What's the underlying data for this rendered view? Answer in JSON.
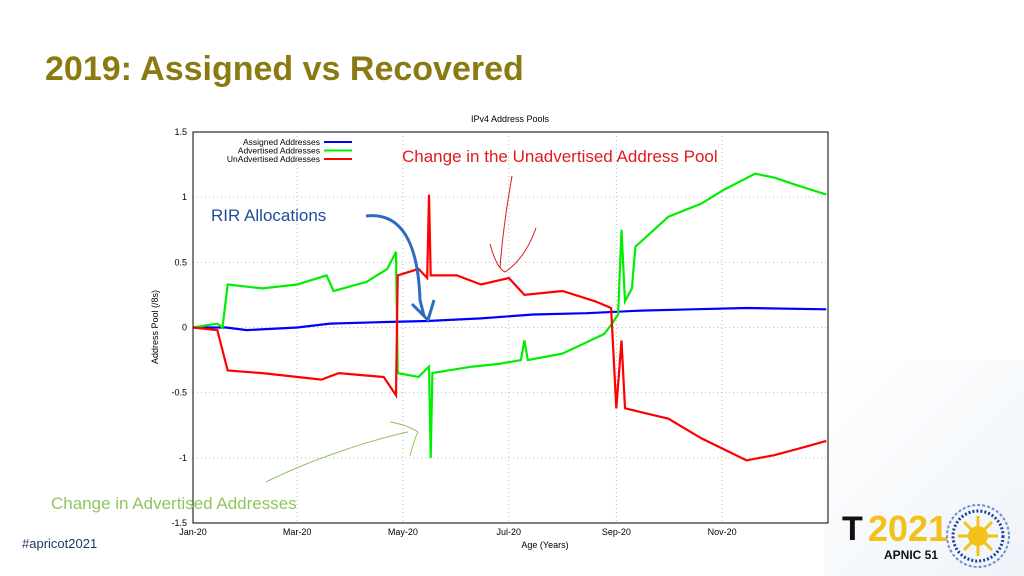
{
  "slide": {
    "title": "2019: Assigned vs Recovered",
    "hashtag": "#apricot2021",
    "logo": {
      "text_t": "T",
      "year": "2021",
      "org": "APNIC 51"
    }
  },
  "annotations": {
    "unadvertised_change": "Change in the Unadvertised Address Pool",
    "rir_allocations": "RIR Allocations",
    "advertised_change": "Change in Advertised Addresses"
  },
  "colors": {
    "title": "#8a7a12",
    "assigned": "#0000ff",
    "advertised": "#00ee00",
    "unadvertised": "#ff0000"
  },
  "chart_data": {
    "type": "line",
    "title": "IPv4 Address Pools",
    "xlabel": "Age (Years)",
    "ylabel": "Address Pool (/8s)",
    "ylim": [
      -1.5,
      1.5
    ],
    "xlim": [
      "2020-01-01",
      "2021-01-01"
    ],
    "yticks": [
      "1.5",
      "1",
      "0.5",
      "0",
      "-0.5",
      "-1",
      "-1.5"
    ],
    "xticks": [
      {
        "date": "2020-01-01",
        "label": "Jan-20"
      },
      {
        "date": "2020-03-01",
        "label": "Mar-20"
      },
      {
        "date": "2020-05-01",
        "label": "May-20"
      },
      {
        "date": "2020-07-01",
        "label": "Jul-20"
      },
      {
        "date": "2020-09-01",
        "label": "Sep-20"
      },
      {
        "date": "2020-11-01",
        "label": "Nov-20"
      }
    ],
    "grid": true,
    "legend": "top-left",
    "series": [
      {
        "name": "Assigned Addresses",
        "color": "#0000ff",
        "points": [
          [
            "2020-01-01",
            0.0
          ],
          [
            "2020-01-20",
            0.0
          ],
          [
            "2020-02-01",
            -0.02
          ],
          [
            "2020-03-01",
            0.0
          ],
          [
            "2020-03-20",
            0.03
          ],
          [
            "2020-04-15",
            0.04
          ],
          [
            "2020-05-15",
            0.05
          ],
          [
            "2020-06-15",
            0.07
          ],
          [
            "2020-07-15",
            0.1
          ],
          [
            "2020-08-15",
            0.11
          ],
          [
            "2020-09-15",
            0.13
          ],
          [
            "2020-10-15",
            0.14
          ],
          [
            "2020-11-15",
            0.15
          ],
          [
            "2020-12-31",
            0.14
          ]
        ]
      },
      {
        "name": "Advertised Addresses",
        "color": "#00ee00",
        "points": [
          [
            "2020-01-01",
            0.0
          ],
          [
            "2020-01-15",
            0.03
          ],
          [
            "2020-01-18",
            0.0
          ],
          [
            "2020-01-21",
            0.33
          ],
          [
            "2020-02-10",
            0.3
          ],
          [
            "2020-03-01",
            0.33
          ],
          [
            "2020-03-18",
            0.4
          ],
          [
            "2020-03-22",
            0.28
          ],
          [
            "2020-04-10",
            0.35
          ],
          [
            "2020-04-22",
            0.45
          ],
          [
            "2020-04-27",
            0.58
          ],
          [
            "2020-04-28",
            -0.35
          ],
          [
            "2020-05-10",
            -0.38
          ],
          [
            "2020-05-16",
            -0.3
          ],
          [
            "2020-05-17",
            -1.0
          ],
          [
            "2020-05-18",
            -0.35
          ],
          [
            "2020-06-10",
            -0.3
          ],
          [
            "2020-06-25",
            -0.28
          ],
          [
            "2020-07-08",
            -0.25
          ],
          [
            "2020-07-10",
            -0.1
          ],
          [
            "2020-07-12",
            -0.25
          ],
          [
            "2020-08-01",
            -0.2
          ],
          [
            "2020-08-25",
            -0.05
          ],
          [
            "2020-08-29",
            0.02
          ],
          [
            "2020-09-02",
            0.1
          ],
          [
            "2020-09-04",
            0.75
          ],
          [
            "2020-09-06",
            0.2
          ],
          [
            "2020-09-10",
            0.3
          ],
          [
            "2020-09-12",
            0.62
          ],
          [
            "2020-10-01",
            0.85
          ],
          [
            "2020-10-20",
            0.95
          ],
          [
            "2020-11-01",
            1.05
          ],
          [
            "2020-11-20",
            1.18
          ],
          [
            "2020-12-01",
            1.15
          ],
          [
            "2020-12-12",
            1.1
          ],
          [
            "2020-12-31",
            1.02
          ]
        ]
      },
      {
        "name": "UnAdvertised Addresses",
        "color": "#ff0000",
        "points": [
          [
            "2020-01-01",
            0.0
          ],
          [
            "2020-01-15",
            -0.02
          ],
          [
            "2020-01-21",
            -0.33
          ],
          [
            "2020-02-10",
            -0.35
          ],
          [
            "2020-03-15",
            -0.4
          ],
          [
            "2020-03-25",
            -0.35
          ],
          [
            "2020-04-20",
            -0.38
          ],
          [
            "2020-04-27",
            -0.52
          ],
          [
            "2020-04-28",
            0.4
          ],
          [
            "2020-05-10",
            0.45
          ],
          [
            "2020-05-15",
            0.38
          ],
          [
            "2020-05-16",
            1.02
          ],
          [
            "2020-05-17",
            0.4
          ],
          [
            "2020-06-01",
            0.4
          ],
          [
            "2020-06-15",
            0.33
          ],
          [
            "2020-07-01",
            0.38
          ],
          [
            "2020-07-10",
            0.25
          ],
          [
            "2020-08-01",
            0.28
          ],
          [
            "2020-08-20",
            0.2
          ],
          [
            "2020-08-29",
            0.15
          ],
          [
            "2020-09-01",
            -0.62
          ],
          [
            "2020-09-04",
            -0.1
          ],
          [
            "2020-09-06",
            -0.62
          ],
          [
            "2020-10-01",
            -0.7
          ],
          [
            "2020-10-20",
            -0.85
          ],
          [
            "2020-11-15",
            -1.02
          ],
          [
            "2020-12-01",
            -0.98
          ],
          [
            "2020-12-15",
            -0.93
          ],
          [
            "2020-12-31",
            -0.87
          ]
        ]
      }
    ]
  }
}
